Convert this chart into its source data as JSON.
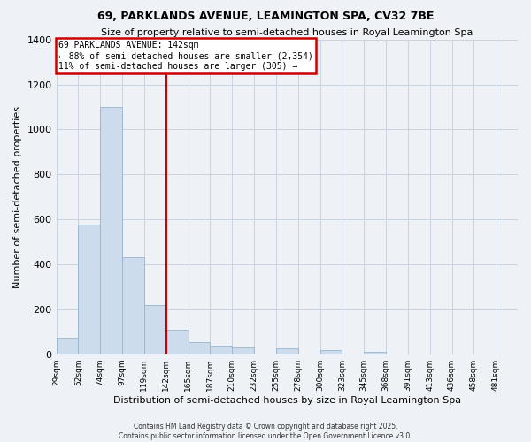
{
  "title": "69, PARKLANDS AVENUE, LEAMINGTON SPA, CV32 7BE",
  "subtitle": "Size of property relative to semi-detached houses in Royal Leamington Spa",
  "xlabel": "Distribution of semi-detached houses by size in Royal Leamington Spa",
  "ylabel": "Number of semi-detached properties",
  "bin_labels": [
    "29sqm",
    "52sqm",
    "74sqm",
    "97sqm",
    "119sqm",
    "142sqm",
    "165sqm",
    "187sqm",
    "210sqm",
    "232sqm",
    "255sqm",
    "278sqm",
    "300sqm",
    "323sqm",
    "345sqm",
    "368sqm",
    "391sqm",
    "413sqm",
    "436sqm",
    "458sqm",
    "481sqm"
  ],
  "bar_values": [
    75,
    575,
    1100,
    430,
    220,
    110,
    55,
    40,
    30,
    0,
    25,
    0,
    20,
    0,
    10,
    0,
    0,
    0,
    0,
    0,
    0
  ],
  "bar_color": "#ccdcec",
  "bar_edge_color": "#9ab4cc",
  "vline_x_index": 5,
  "vline_color": "#cc0000",
  "annotation_title": "69 PARKLANDS AVENUE: 142sqm",
  "annotation_line1": "← 88% of semi-detached houses are smaller (2,354)",
  "annotation_line2": "11% of semi-detached houses are larger (305) →",
  "annotation_box_color": "#cc0000",
  "ylim": [
    0,
    1400
  ],
  "yticks": [
    0,
    200,
    400,
    600,
    800,
    1000,
    1200,
    1400
  ],
  "background_color": "#eef2f7",
  "grid_color": "#c8d4e0",
  "footer_line1": "Contains HM Land Registry data © Crown copyright and database right 2025.",
  "footer_line2": "Contains public sector information licensed under the Open Government Licence v3.0."
}
